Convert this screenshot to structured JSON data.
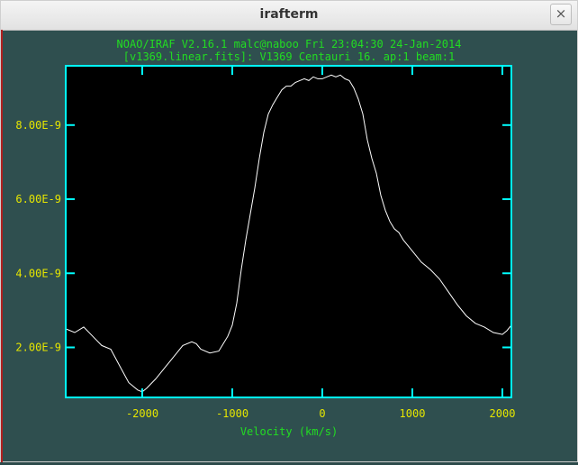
{
  "window": {
    "title": "irafterm",
    "close_glyph": "×"
  },
  "header": {
    "line1": "NOAO/IRAF V2.16.1 malc@naboo Fri 23:04:30 24-Jan-2014",
    "line2": "[v1369.linear.fits]: V1369 Centauri 16. ap:1 beam:1"
  },
  "colors": {
    "text": "#22dd22",
    "tick_labels": "#e6e600",
    "frame": "#00ffff",
    "trace": "#ffffff",
    "plot_bg": "#000000",
    "window_bg": "#2f4f4f"
  },
  "chart_data": {
    "type": "line",
    "xlabel": "Velocity (km/s)",
    "ylabel": "",
    "xlim": [
      -2850,
      2100
    ],
    "ylim": [
      6.5e-10,
      9.6e-09
    ],
    "x_ticks": [
      -2000,
      -1000,
      0,
      1000,
      2000
    ],
    "x_tick_labels": [
      "-2000",
      "-1000",
      "0",
      "1000",
      "2000"
    ],
    "y_ticks": [
      2e-09,
      4e-09,
      6e-09,
      8e-09
    ],
    "y_tick_labels": [
      "2.00E-9",
      "4.00E-9",
      "6.00E-9",
      "8.00E-9"
    ],
    "grid": false,
    "series": [
      {
        "x": [
          -2850,
          -2750,
          -2650,
          -2550,
          -2450,
          -2350,
          -2250,
          -2150,
          -2050,
          -2000,
          -1950,
          -1850,
          -1750,
          -1650,
          -1550,
          -1450,
          -1400,
          -1350,
          -1250,
          -1150,
          -1050,
          -1000,
          -950,
          -900,
          -850,
          -800,
          -750,
          -700,
          -650,
          -600,
          -550,
          -500,
          -450,
          -400,
          -350,
          -300,
          -250,
          -200,
          -150,
          -100,
          -50,
          0,
          50,
          100,
          150,
          200,
          250,
          300,
          350,
          400,
          450,
          500,
          550,
          600,
          650,
          700,
          750,
          800,
          850,
          900,
          950,
          1000,
          1100,
          1200,
          1300,
          1400,
          1500,
          1600,
          1700,
          1800,
          1900,
          2000,
          2050,
          2100
        ],
        "y": [
          2.5e-09,
          2.4e-09,
          2.55e-09,
          2.3e-09,
          2.05e-09,
          1.95e-09,
          1.5e-09,
          1.05e-09,
          8.5e-10,
          8e-10,
          9e-10,
          1.15e-09,
          1.45e-09,
          1.75e-09,
          2.05e-09,
          2.15e-09,
          2.1e-09,
          1.95e-09,
          1.85e-09,
          1.9e-09,
          2.3e-09,
          2.6e-09,
          3.2e-09,
          4.1e-09,
          4.9e-09,
          5.6e-09,
          6.3e-09,
          7.1e-09,
          7.8e-09,
          8.3e-09,
          8.55e-09,
          8.75e-09,
          8.95e-09,
          9.05e-09,
          9.05e-09,
          9.15e-09,
          9.2e-09,
          9.25e-09,
          9.2e-09,
          9.3e-09,
          9.25e-09,
          9.25e-09,
          9.3e-09,
          9.35e-09,
          9.3e-09,
          9.35e-09,
          9.25e-09,
          9.2e-09,
          9e-09,
          8.7e-09,
          8.3e-09,
          7.6e-09,
          7.1e-09,
          6.7e-09,
          6.1e-09,
          5.7e-09,
          5.4e-09,
          5.2e-09,
          5.1e-09,
          4.9e-09,
          4.75e-09,
          4.6e-09,
          4.3e-09,
          4.1e-09,
          3.85e-09,
          3.5e-09,
          3.15e-09,
          2.85e-09,
          2.65e-09,
          2.55e-09,
          2.4e-09,
          2.35e-09,
          2.45e-09,
          2.6e-09
        ]
      }
    ]
  }
}
